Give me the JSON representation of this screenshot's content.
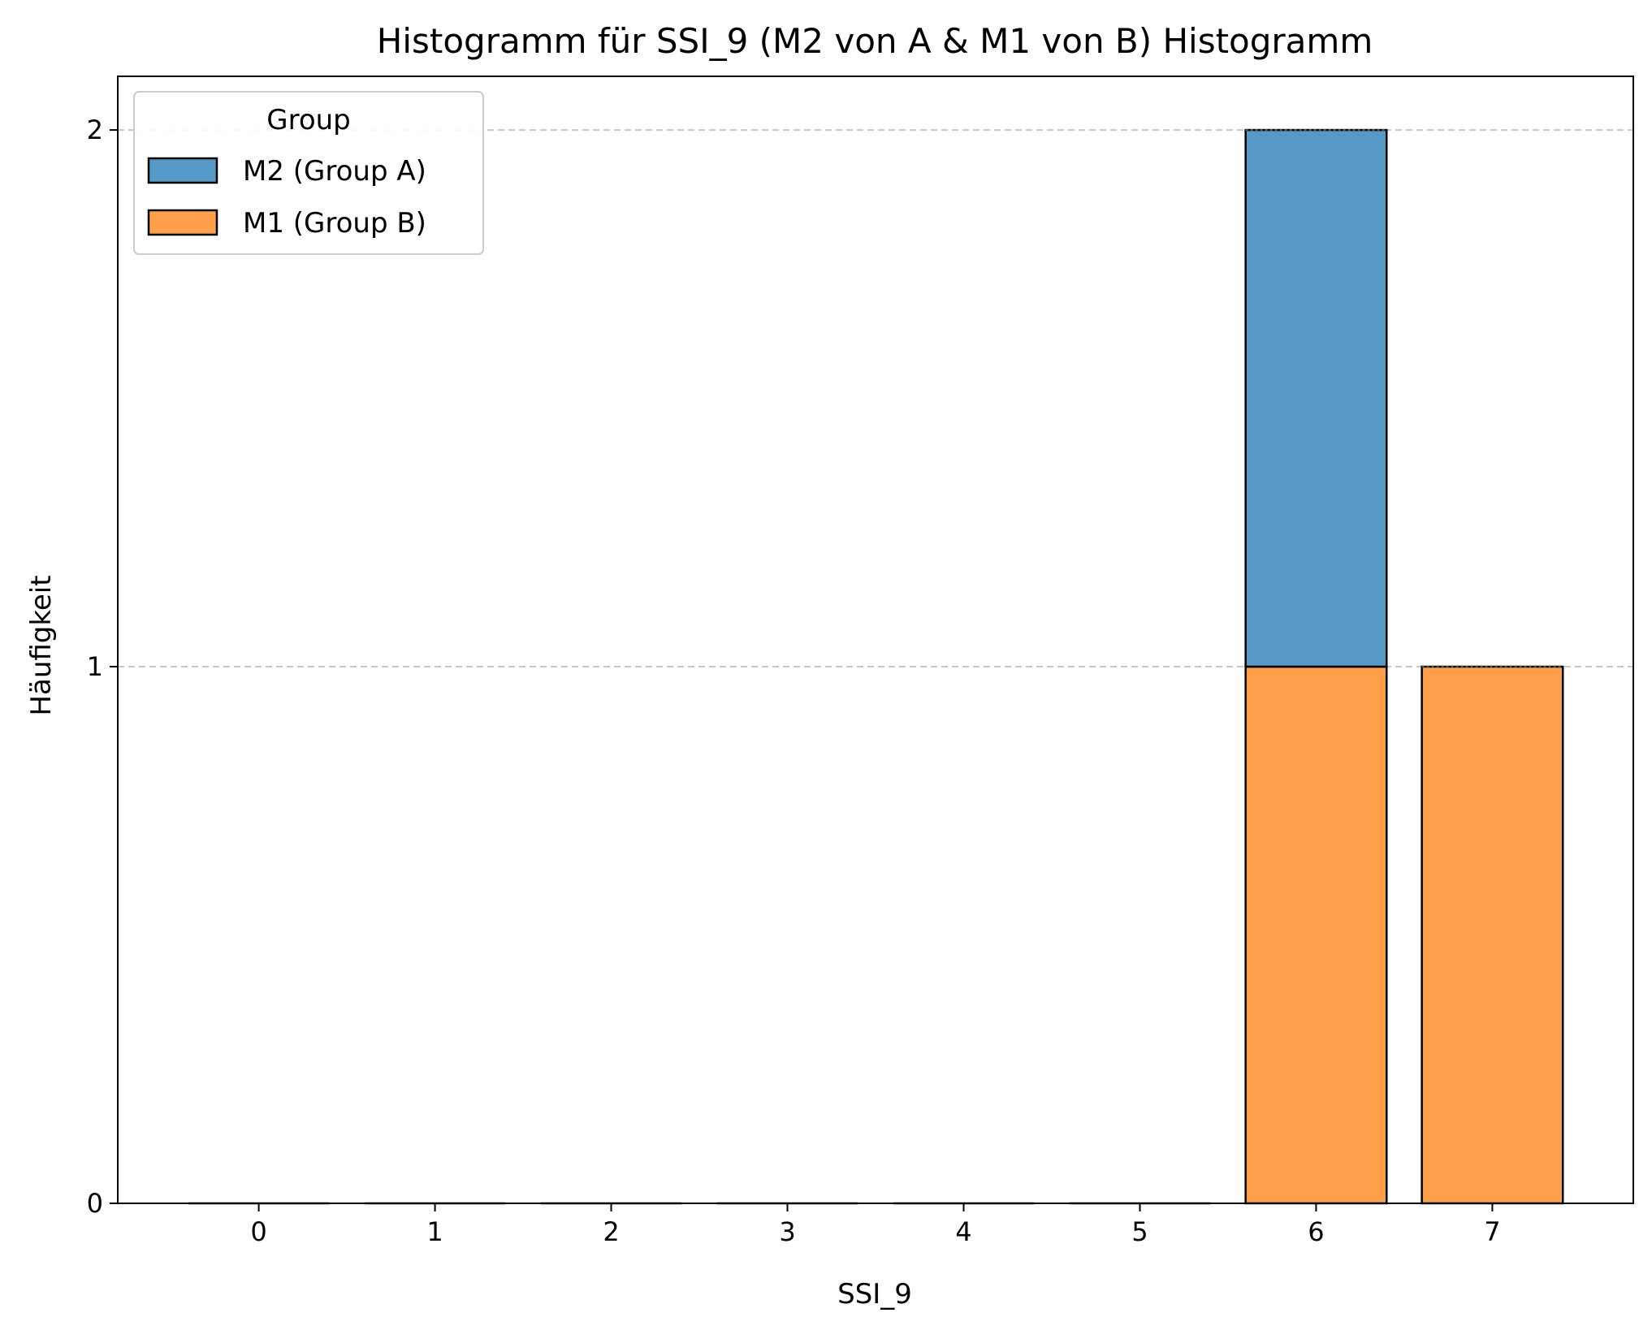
{
  "chart_data": {
    "type": "bar",
    "stacked": true,
    "title": "Histogramm für SSI_9 (M2 von A & M1 von B) Histogramm",
    "xlabel": "SSI_9",
    "ylabel": "Häufigkeit",
    "categories": [
      "0",
      "1",
      "2",
      "3",
      "4",
      "5",
      "6",
      "7"
    ],
    "ylim": [
      0,
      2.1
    ],
    "yticks": [
      0,
      1,
      2
    ],
    "grid": "horizontal dashed",
    "legend": {
      "title": "Group",
      "placement": "top-left"
    },
    "series": [
      {
        "name": "M1 (Group B)",
        "color": "#ff9f4a",
        "values": [
          0,
          0,
          0,
          0,
          0,
          0,
          1,
          1
        ]
      },
      {
        "name": "M2 (Group A)",
        "color": "#5698c6",
        "values": [
          0,
          0,
          0,
          0,
          0,
          0,
          1,
          0
        ]
      }
    ]
  }
}
